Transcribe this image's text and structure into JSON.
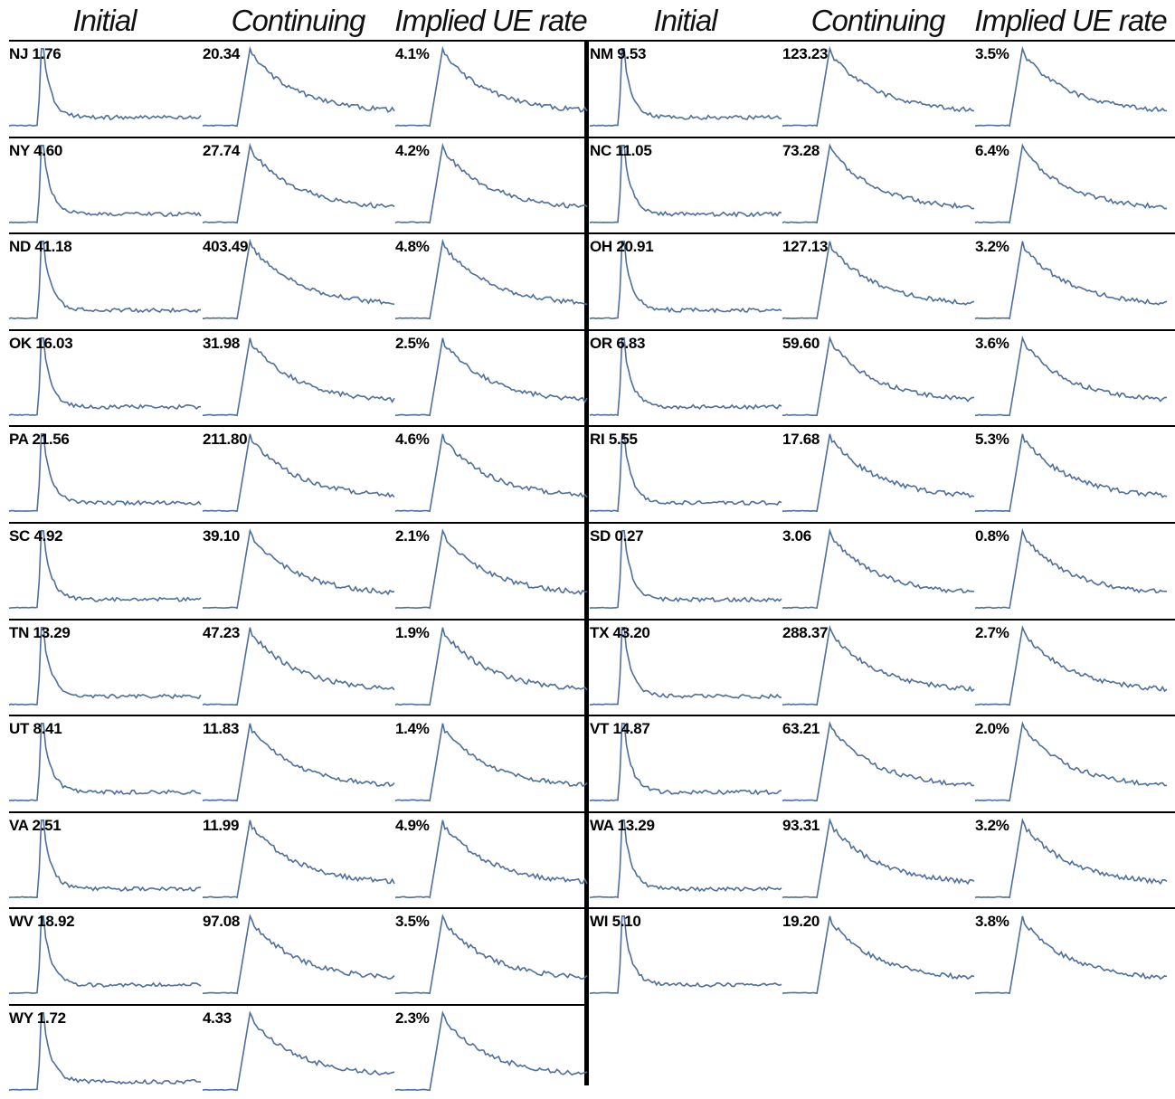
{
  "headers": {
    "left": [
      "Initial",
      "Continuing",
      "Implied UE rate"
    ],
    "right": [
      "Initial",
      "Continuing",
      "Implied UE rate"
    ]
  },
  "colors": {
    "line": "#4e6f9e",
    "divider": "#000000"
  },
  "chart_data": {
    "type": "line",
    "layout": "small-multiples",
    "panels": {
      "left": [
        {
          "state": "NJ",
          "initial": "1.76",
          "continuing": "20.34",
          "rate": "4.1%"
        },
        {
          "state": "NY",
          "initial": "4.60",
          "continuing": "27.74",
          "rate": "4.2%"
        },
        {
          "state": "ND",
          "initial": "41.18",
          "continuing": "403.49",
          "rate": "4.8%"
        },
        {
          "state": "OK",
          "initial": "16.03",
          "continuing": "31.98",
          "rate": "2.5%"
        },
        {
          "state": "PA",
          "initial": "21.56",
          "continuing": "211.80",
          "rate": "4.6%"
        },
        {
          "state": "SC",
          "initial": "4.92",
          "continuing": "39.10",
          "rate": "2.1%"
        },
        {
          "state": "TN",
          "initial": "13.29",
          "continuing": "47.23",
          "rate": "1.9%"
        },
        {
          "state": "UT",
          "initial": "8.41",
          "continuing": "11.83",
          "rate": "1.4%"
        },
        {
          "state": "VA",
          "initial": "2.51",
          "continuing": "11.99",
          "rate": "4.9%"
        },
        {
          "state": "WV",
          "initial": "18.92",
          "continuing": "97.08",
          "rate": "3.5%"
        },
        {
          "state": "WY",
          "initial": "1.72",
          "continuing": "4.33",
          "rate": "2.3%"
        }
      ],
      "right": [
        {
          "state": "NM",
          "initial": "9.53",
          "continuing": "123.23",
          "rate": "3.5%"
        },
        {
          "state": "NC",
          "initial": "11.05",
          "continuing": "73.28",
          "rate": "6.4%"
        },
        {
          "state": "OH",
          "initial": "20.91",
          "continuing": "127.13",
          "rate": "3.2%"
        },
        {
          "state": "OR",
          "initial": "6.83",
          "continuing": "59.60",
          "rate": "3.6%"
        },
        {
          "state": "RI",
          "initial": "5.55",
          "continuing": "17.68",
          "rate": "5.3%"
        },
        {
          "state": "SD",
          "initial": "0.27",
          "continuing": "3.06",
          "rate": "0.8%"
        },
        {
          "state": "TX",
          "initial": "43.20",
          "continuing": "288.37",
          "rate": "2.7%"
        },
        {
          "state": "VT",
          "initial": "14.87",
          "continuing": "63.21",
          "rate": "2.0%"
        },
        {
          "state": "WA",
          "initial": "13.29",
          "continuing": "93.31",
          "rate": "3.2%"
        },
        {
          "state": "WI",
          "initial": "5.10",
          "continuing": "19.20",
          "rate": "3.8%"
        }
      ]
    }
  }
}
